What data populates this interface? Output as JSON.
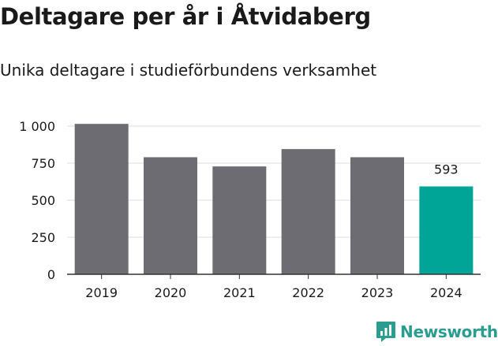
{
  "title": "Deltagare per år i Åtvidaberg",
  "subtitle": "Unika deltagare i studieförbundens verksamhet",
  "brand": {
    "name": "Newsworthy",
    "icon": "newsworthy-logo-icon",
    "color": "#2a9d8f"
  },
  "colors": {
    "bar": "#6d6c72",
    "highlight": "#00a597",
    "grid": "#dcdcdc",
    "axis": "#333333"
  },
  "chart_data": {
    "type": "bar",
    "title": "Deltagare per år i Åtvidaberg",
    "subtitle": "Unika deltagare i studieförbundens verksamhet",
    "xlabel": "",
    "ylabel": "",
    "categories": [
      "2019",
      "2020",
      "2021",
      "2022",
      "2023",
      "2024"
    ],
    "values": [
      1015,
      790,
      728,
      845,
      790,
      593
    ],
    "ylim": [
      0,
      1000
    ],
    "yticks": [
      0,
      250,
      500,
      750,
      1000
    ],
    "ytick_labels": [
      "0",
      "250",
      "500",
      "750",
      "1 000"
    ],
    "highlight_index": 5,
    "data_labels": [
      {
        "index": 5,
        "text": "593"
      }
    ],
    "grid": true,
    "legend": "none"
  }
}
